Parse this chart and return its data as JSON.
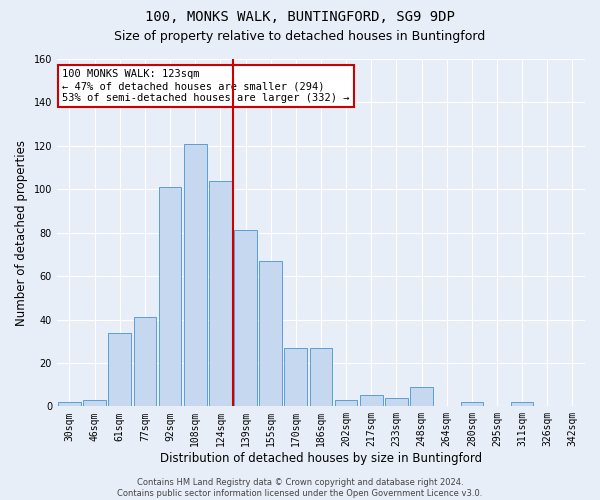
{
  "title_line1": "100, MONKS WALK, BUNTINGFORD, SG9 9DP",
  "title_line2": "Size of property relative to detached houses in Buntingford",
  "xlabel": "Distribution of detached houses by size in Buntingford",
  "ylabel": "Number of detached properties",
  "bar_labels": [
    "30sqm",
    "46sqm",
    "61sqm",
    "77sqm",
    "92sqm",
    "108sqm",
    "124sqm",
    "139sqm",
    "155sqm",
    "170sqm",
    "186sqm",
    "202sqm",
    "217sqm",
    "233sqm",
    "248sqm",
    "264sqm",
    "280sqm",
    "295sqm",
    "311sqm",
    "326sqm",
    "342sqm"
  ],
  "bar_values": [
    2,
    3,
    34,
    41,
    101,
    121,
    104,
    81,
    67,
    27,
    27,
    3,
    5,
    4,
    9,
    0,
    2,
    0,
    2,
    0,
    0
  ],
  "bar_color": "#c5d8f0",
  "bar_edge_color": "#5a9fd4",
  "background_color": "#e8eef8",
  "grid_color": "#ffffff",
  "ylim": [
    0,
    160
  ],
  "yticks": [
    0,
    20,
    40,
    60,
    80,
    100,
    120,
    140,
    160
  ],
  "vline_index": 6,
  "vline_color": "#cc0000",
  "annotation_line1": "100 MONKS WALK: 123sqm",
  "annotation_line2": "← 47% of detached houses are smaller (294)",
  "annotation_line3": "53% of semi-detached houses are larger (332) →",
  "annotation_box_color": "#ffffff",
  "annotation_box_edge": "#cc0000",
  "footer_text": "Contains HM Land Registry data © Crown copyright and database right 2024.\nContains public sector information licensed under the Open Government Licence v3.0.",
  "title_fontsize": 10,
  "subtitle_fontsize": 9,
  "tick_fontsize": 7,
  "ylabel_fontsize": 8.5,
  "xlabel_fontsize": 8.5,
  "annotation_fontsize": 7.5,
  "footer_fontsize": 6
}
